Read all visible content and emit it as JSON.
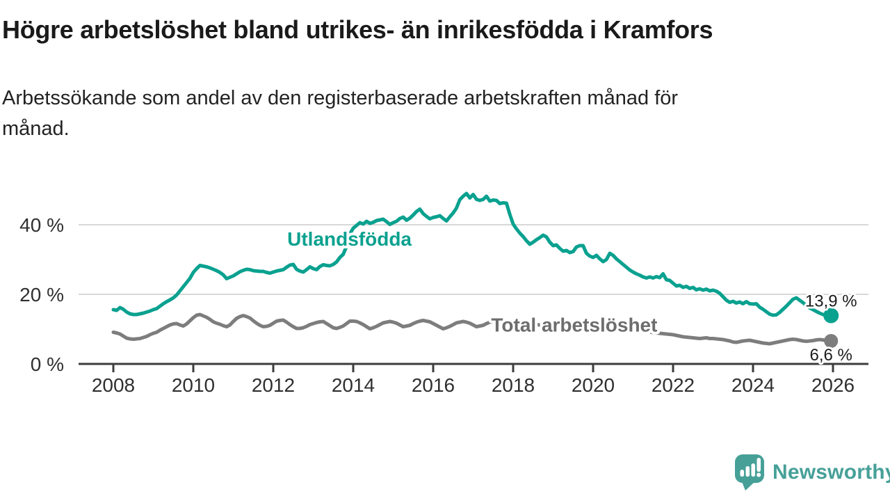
{
  "header": {
    "title": "Högre arbetslöshet bland utrikes- än inrikesfödda i Kramfors",
    "subtitle": "Arbetssökande som andel av den registerbaserade arbetskraften månad för\nmånad."
  },
  "footer": {
    "brand": "Newsworthy"
  },
  "colors": {
    "accent_teal": "#0aa18f",
    "series_gray": "#7d7d7d",
    "gray_label": "#6d6d6d",
    "axis": "#3c3c3c",
    "gridline": "#d8d8d8",
    "text_dark": "#1c1c1c",
    "logo_teal": "#46a098"
  },
  "chart_data": {
    "type": "line",
    "title": "Högre arbetslöshet bland utrikes- än inrikesfödda i Kramfors",
    "subtitle": "Arbetssökande som andel av den registerbaserade arbetskraften månad för månad.",
    "x_axis": {
      "ticks": [
        "2008",
        "2010",
        "2012",
        "2014",
        "2016",
        "2018",
        "2020",
        "2022",
        "2024",
        "2026"
      ],
      "range": [
        2007.1,
        2026.9
      ],
      "unit": "year"
    },
    "y_axis": {
      "ticks": [
        {
          "value": 0,
          "label": "0 %"
        },
        {
          "value": 20,
          "label": "20 %"
        },
        {
          "value": 40,
          "label": "40 %"
        }
      ],
      "range": [
        0,
        50
      ],
      "grid": true
    },
    "legend_position": "inline-labels",
    "series": [
      {
        "id": "utlandsfodda",
        "label": "Utlandsfödda",
        "color": "#0aa18f",
        "end_label": "13,9 %",
        "end_label_position": "above",
        "label_anchor": {
          "x": 2012.35,
          "y": 34.0
        },
        "start": 2008.0,
        "step_per_year": 12,
        "values": [
          15.6,
          15.4,
          16.2,
          15.7,
          14.9,
          14.4,
          14.2,
          14.2,
          14.4,
          14.6,
          14.9,
          15.2,
          15.6,
          15.9,
          16.6,
          17.3,
          17.9,
          18.4,
          19.0,
          19.8,
          21.0,
          22.2,
          23.4,
          24.6,
          26.3,
          27.4,
          28.3,
          28.1,
          27.9,
          27.6,
          27.2,
          26.8,
          26.3,
          25.6,
          24.5,
          24.9,
          25.3,
          25.9,
          26.5,
          26.9,
          27.2,
          27.1,
          26.8,
          26.7,
          26.6,
          26.6,
          26.3,
          26.1,
          26.4,
          26.7,
          26.9,
          27.1,
          27.8,
          28.4,
          28.6,
          27.2,
          26.7,
          26.4,
          27.1,
          27.9,
          27.4,
          27.1,
          28.0,
          28.5,
          28.3,
          28.2,
          28.6,
          29.3,
          30.6,
          31.5,
          33.8,
          37.4,
          39.0,
          39.8,
          40.6,
          40.2,
          41.0,
          40.4,
          40.7,
          41.2,
          41.4,
          41.6,
          40.9,
          40.1,
          40.6,
          41.0,
          41.8,
          42.2,
          41.3,
          41.9,
          42.8,
          43.8,
          44.5,
          43.2,
          42.4,
          41.7,
          42.1,
          42.3,
          42.6,
          41.8,
          41.1,
          42.3,
          43.4,
          44.8,
          47.2,
          48.2,
          49.0,
          47.7,
          48.7,
          47.3,
          47.0,
          47.3,
          48.2,
          46.8,
          47.1,
          47.0,
          46.1,
          46.3,
          46.2,
          43.0,
          40.2,
          38.8,
          37.6,
          36.6,
          35.4,
          34.4,
          35.0,
          35.7,
          36.3,
          37.0,
          36.5,
          35.0,
          34.0,
          34.2,
          33.2,
          32.4,
          32.6,
          32.0,
          32.3,
          33.6,
          34.0,
          34.0,
          31.8,
          31.0,
          30.6,
          31.2,
          30.2,
          29.4,
          30.0,
          31.8,
          31.2,
          30.2,
          29.4,
          28.6,
          27.8,
          27.0,
          26.4,
          25.9,
          25.5,
          25.0,
          24.7,
          25.0,
          24.7,
          25.1,
          24.8,
          25.9,
          24.2,
          24.0,
          23.2,
          22.4,
          22.6,
          22.0,
          22.3,
          21.7,
          22.0,
          21.3,
          21.6,
          21.2,
          21.5,
          21.0,
          21.2,
          20.9,
          20.3,
          19.3,
          18.3,
          17.7,
          18.0,
          17.5,
          17.8,
          17.3,
          17.9,
          17.3,
          17.2,
          17.3,
          16.3,
          15.7,
          15.0,
          14.3,
          14.0,
          14.1,
          14.8,
          15.7,
          16.6,
          17.6,
          18.6,
          19.0,
          18.3,
          17.6,
          16.8,
          16.1,
          15.6,
          15.1,
          14.6,
          14.2,
          14.0,
          13.9
        ]
      },
      {
        "id": "total-arbetsloshet",
        "label": "Total arbetslöshet",
        "color": "#7d7d7d",
        "label_color": "#6d6d6d",
        "end_label": "6,6 %",
        "end_label_position": "below",
        "label_anchor": {
          "x": 2017.45,
          "y": 9.3
        },
        "start": 2008.0,
        "step_per_year": 12,
        "values": [
          9.1,
          8.9,
          8.6,
          8.0,
          7.4,
          7.2,
          7.1,
          7.2,
          7.3,
          7.6,
          7.9,
          8.4,
          8.8,
          9.1,
          9.7,
          10.2,
          10.7,
          11.2,
          11.5,
          11.6,
          11.2,
          10.9,
          11.5,
          12.4,
          13.3,
          14.0,
          14.2,
          13.8,
          13.4,
          12.8,
          12.1,
          11.7,
          11.4,
          11.0,
          10.7,
          11.2,
          12.2,
          13.1,
          13.6,
          13.9,
          13.6,
          13.2,
          12.4,
          11.7,
          11.1,
          10.7,
          10.8,
          11.1,
          11.7,
          12.3,
          12.5,
          12.6,
          12.0,
          11.3,
          10.7,
          10.2,
          10.2,
          10.4,
          10.8,
          11.3,
          11.6,
          11.9,
          12.1,
          12.2,
          11.6,
          11.0,
          10.4,
          10.2,
          10.5,
          10.9,
          11.6,
          12.3,
          12.3,
          12.2,
          11.8,
          11.3,
          10.7,
          10.1,
          10.4,
          10.8,
          11.3,
          11.8,
          12.0,
          12.2,
          12.0,
          11.7,
          11.2,
          10.7,
          10.9,
          11.1,
          11.6,
          12.0,
          12.3,
          12.5,
          12.3,
          12.1,
          11.6,
          11.1,
          10.6,
          10.1,
          10.4,
          10.8,
          11.3,
          11.8,
          12.0,
          12.2,
          12.0,
          11.7,
          11.2,
          10.7,
          10.9,
          11.1,
          11.6,
          12.0,
          12.2,
          12.4,
          12.3,
          12.1,
          11.8,
          11.5,
          11.1,
          10.8,
          10.5,
          10.3,
          10.5,
          10.8,
          11.1,
          11.3,
          11.2,
          11.0,
          10.8,
          10.6,
          10.4,
          10.2,
          10.4,
          10.6,
          10.3,
          10.1,
          10.3,
          10.6,
          10.8,
          10.9,
          10.7,
          10.5,
          10.4,
          10.4,
          10.8,
          11.2,
          11.6,
          11.8,
          11.6,
          11.4,
          11.1,
          10.9,
          10.6,
          10.4,
          10.2,
          10.0,
          9.8,
          9.6,
          9.4,
          9.2,
          9.0,
          8.9,
          8.8,
          8.7,
          8.6,
          8.5,
          8.4,
          8.2,
          8.0,
          7.8,
          7.7,
          7.6,
          7.5,
          7.4,
          7.3,
          7.4,
          7.5,
          7.3,
          7.3,
          7.2,
          7.1,
          7.0,
          6.8,
          6.6,
          6.3,
          6.2,
          6.4,
          6.6,
          6.7,
          6.8,
          6.6,
          6.4,
          6.2,
          6.0,
          5.9,
          5.8,
          6.0,
          6.2,
          6.4,
          6.6,
          6.8,
          7.0,
          7.1,
          7.0,
          6.8,
          6.6,
          6.5,
          6.6,
          6.7,
          6.9,
          7.0,
          6.9,
          6.7,
          6.6
        ]
      }
    ]
  }
}
